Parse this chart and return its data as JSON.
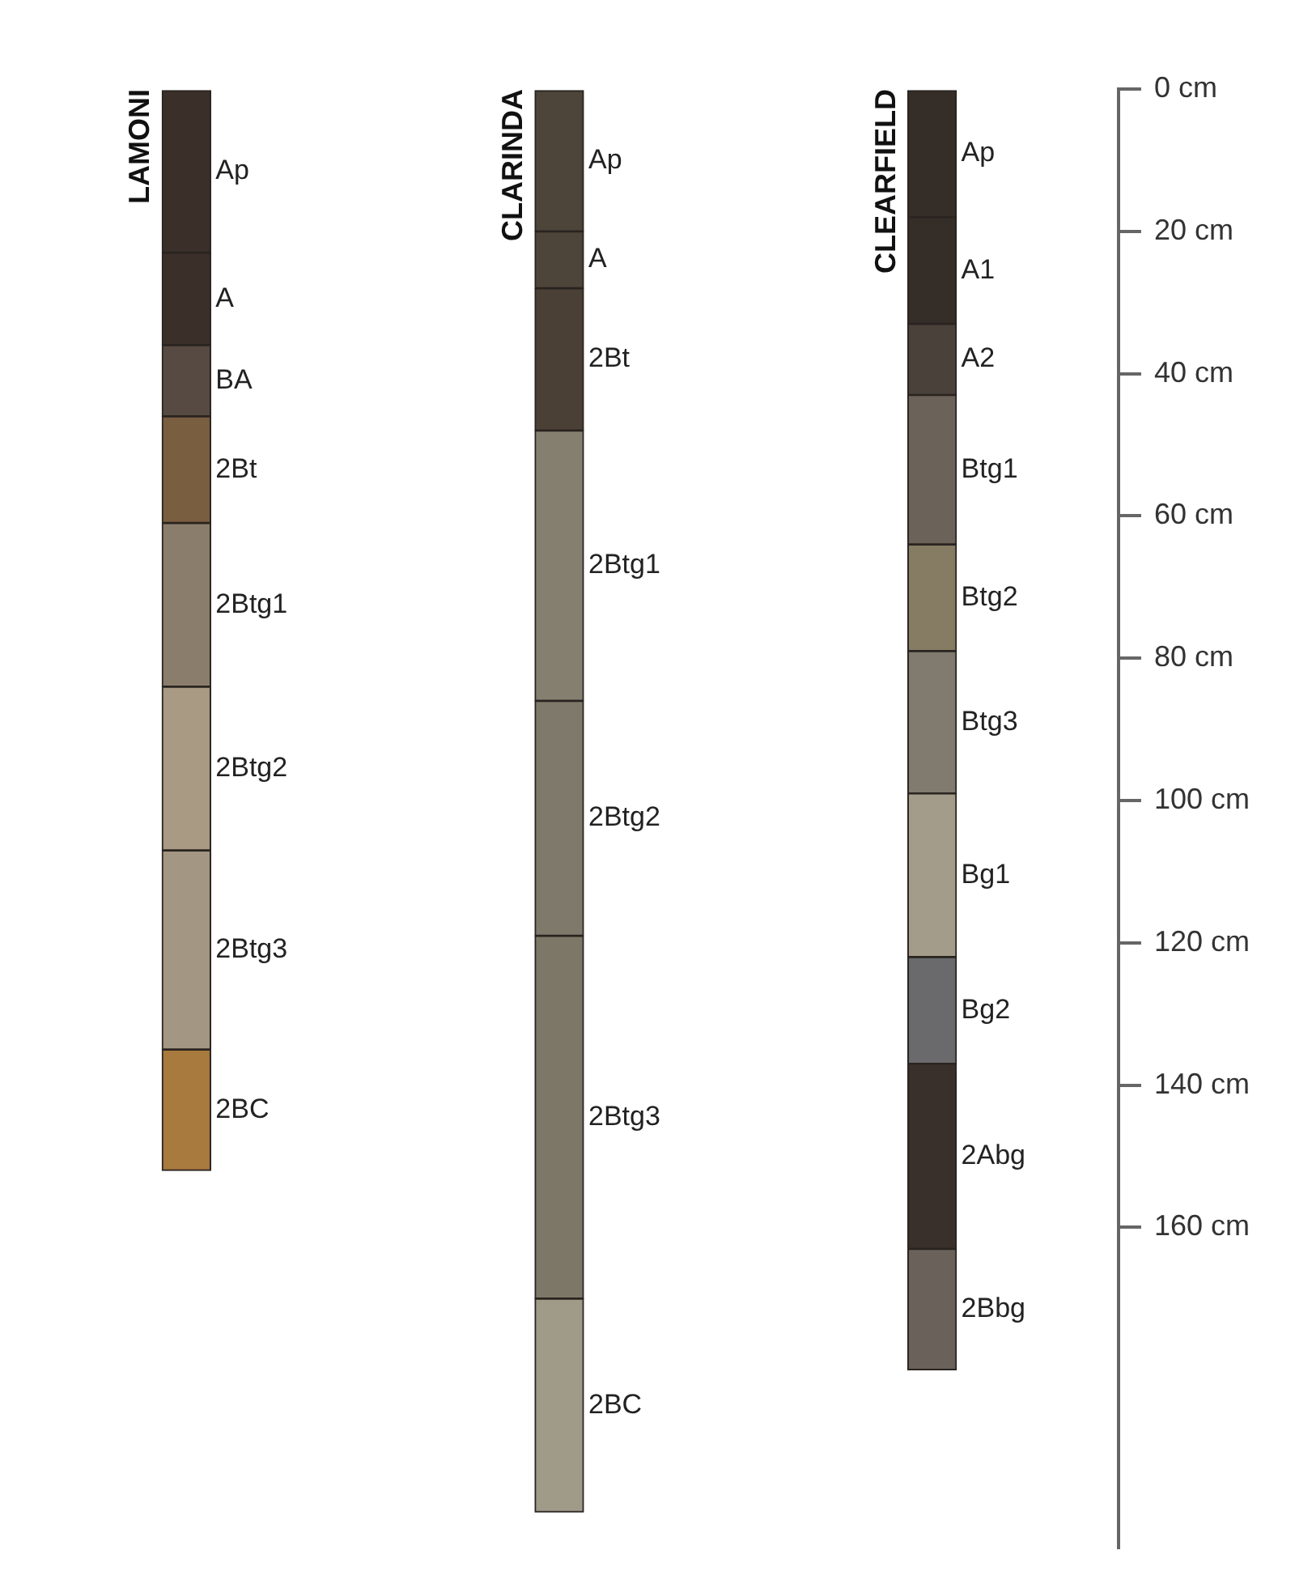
{
  "chart_data": {
    "type": "bar",
    "stacked": true,
    "categories": [
      "LAMONI",
      "CLARINDA",
      "CLEARFIELD"
    ],
    "ylim": [
      205,
      0
    ],
    "yticks": [
      {
        "value": 0,
        "label": "0 cm"
      },
      {
        "value": 20,
        "label": "20 cm"
      },
      {
        "value": 40,
        "label": "40 cm"
      },
      {
        "value": 60,
        "label": "60 cm"
      },
      {
        "value": 80,
        "label": "80 cm"
      },
      {
        "value": 100,
        "label": "100 cm"
      },
      {
        "value": 120,
        "label": "120 cm"
      },
      {
        "value": 140,
        "label": "140 cm"
      },
      {
        "value": 160,
        "label": "160 cm"
      }
    ],
    "grid": false,
    "legend": false,
    "series": [
      {
        "name": "Ap",
        "color": "#3a3029",
        "values": [
          23,
          null,
          null
        ]
      },
      {
        "name": "A",
        "color": "#3a3029",
        "values": [
          13,
          null,
          null
        ]
      },
      {
        "name": "BA",
        "color": "#574a42",
        "values": [
          10,
          null,
          null
        ]
      },
      {
        "name": "2Bt",
        "color": "#7a5e40",
        "values": [
          15,
          null,
          null
        ]
      },
      {
        "name": "2Btg1",
        "color": "#8a7d6b",
        "values": [
          23,
          null,
          null
        ]
      },
      {
        "name": "2Btg2",
        "color": "#a89a83",
        "values": [
          23,
          null,
          null
        ]
      },
      {
        "name": "2Btg3",
        "color": "#a39683",
        "values": [
          28,
          null,
          null
        ]
      },
      {
        "name": "2BC",
        "color": "#a87a3e",
        "values": [
          17,
          null,
          null
        ]
      },
      {
        "name": "Ap",
        "color": "#4d443a",
        "values": [
          null,
          20,
          null
        ]
      },
      {
        "name": "A",
        "color": "#4d443a",
        "values": [
          null,
          8,
          null
        ]
      },
      {
        "name": "2Bt",
        "color": "#4a4036",
        "values": [
          null,
          20,
          null
        ]
      },
      {
        "name": "2Btg1",
        "color": "#857f70",
        "values": [
          null,
          38,
          null
        ]
      },
      {
        "name": "2Btg2",
        "color": "#7f796b",
        "values": [
          null,
          33,
          null
        ]
      },
      {
        "name": "2Btg3",
        "color": "#7d7767",
        "values": [
          null,
          51,
          null
        ]
      },
      {
        "name": "2BC",
        "color": "#a09a88",
        "values": [
          null,
          30,
          null
        ]
      },
      {
        "name": "Ap",
        "color": "#352d28",
        "values": [
          null,
          null,
          18
        ]
      },
      {
        "name": "A1",
        "color": "#352d28",
        "values": [
          null,
          null,
          15
        ]
      },
      {
        "name": "A2",
        "color": "#4a413b",
        "values": [
          null,
          null,
          10
        ]
      },
      {
        "name": "Btg1",
        "color": "#6b6259",
        "values": [
          null,
          null,
          21
        ]
      },
      {
        "name": "Btg2",
        "color": "#857c63",
        "values": [
          null,
          null,
          15
        ]
      },
      {
        "name": "Btg3",
        "color": "#807b6e",
        "values": [
          null,
          null,
          20
        ]
      },
      {
        "name": "Bg1",
        "color": "#a39c8a",
        "values": [
          null,
          null,
          23
        ]
      },
      {
        "name": "Bg2",
        "color": "#6a6a6c",
        "values": [
          null,
          null,
          15
        ]
      },
      {
        "name": "2Abg",
        "color": "#3a302b",
        "values": [
          null,
          null,
          26
        ]
      },
      {
        "name": "2Bbg",
        "color": "#6a625a",
        "values": [
          null,
          null,
          17
        ]
      }
    ]
  }
}
